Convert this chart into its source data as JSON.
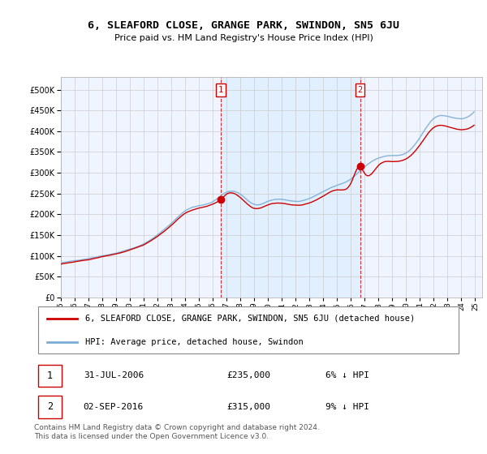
{
  "title": "6, SLEAFORD CLOSE, GRANGE PARK, SWINDON, SN5 6JU",
  "subtitle": "Price paid vs. HM Land Registry's House Price Index (HPI)",
  "legend_line1": "6, SLEAFORD CLOSE, GRANGE PARK, SWINDON, SN5 6JU (detached house)",
  "legend_line2": "HPI: Average price, detached house, Swindon",
  "transaction1_date": "31-JUL-2006",
  "transaction1_price": "£235,000",
  "transaction1_hpi": "6% ↓ HPI",
  "transaction2_date": "02-SEP-2016",
  "transaction2_price": "£315,000",
  "transaction2_hpi": "9% ↓ HPI",
  "footer": "Contains HM Land Registry data © Crown copyright and database right 2024.\nThis data is licensed under the Open Government Licence v3.0.",
  "red_color": "#cc0000",
  "blue_color": "#7aadd4",
  "shade_color": "#ddeeff",
  "background_color": "#ffffff",
  "grid_color": "#cccccc",
  "plot_bg": "#f0f4ff",
  "ylim": [
    0,
    530000
  ],
  "yticks": [
    0,
    50000,
    100000,
    150000,
    200000,
    250000,
    300000,
    350000,
    400000,
    450000,
    500000
  ],
  "sale1_x": 2006.58,
  "sale1_y": 235000,
  "sale2_x": 2016.67,
  "sale2_y": 315000,
  "vline1_x": 2006.58,
  "vline2_x": 2016.67,
  "xlim_left": 1995.0,
  "xlim_right": 2025.5
}
